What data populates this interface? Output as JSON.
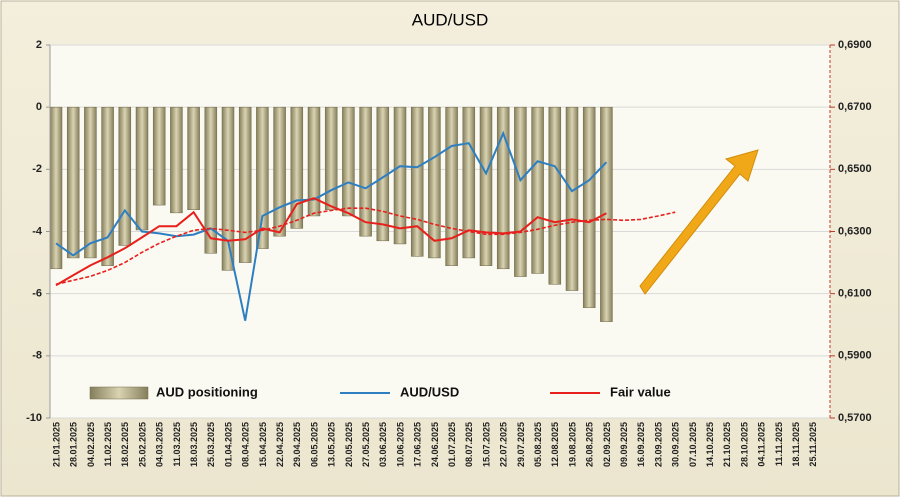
{
  "chart_data": {
    "type": "bar",
    "title": "AUD/USD",
    "categories": [
      "21.01.2025",
      "28.01.2025",
      "04.02.2025",
      "11.02.2025",
      "18.02.2025",
      "25.02.2025",
      "04.03.2025",
      "11.03.2025",
      "18.03.2025",
      "25.03.2025",
      "01.04.2025",
      "08.04.2025",
      "15.04.2025",
      "22.04.2025",
      "29.04.2025",
      "06.05.2025",
      "13.05.2025",
      "20.05.2025",
      "27.05.2025",
      "03.06.2025",
      "10.06.2025",
      "17.06.2025",
      "24.06.2025",
      "01.07.2025",
      "08.07.2025",
      "15.07.2025",
      "22.07.2025",
      "29.07.2025",
      "05.08.2025",
      "12.08.2025",
      "19.08.2025",
      "26.08.2025",
      "02.09.2025",
      "09.09.2025",
      "16.09.2025",
      "23.09.2025",
      "30.09.2025",
      "07.10.2025",
      "14.10.2025",
      "21.10.2025",
      "28.10.2025",
      "04.11.2025",
      "11.11.2025",
      "18.11.2025",
      "25.11.2025"
    ],
    "series": [
      {
        "name": "AUD positioning",
        "type": "bar",
        "color": "#b3ab82",
        "values": [
          -5.2,
          -4.85,
          -4.85,
          -5.1,
          -4.45,
          -3.95,
          -3.15,
          -3.4,
          -3.3,
          -4.7,
          -5.25,
          -5.0,
          -4.55,
          -4.15,
          -3.9,
          -3.5,
          -3.3,
          -3.5,
          -4.15,
          -4.3,
          -4.4,
          -4.8,
          -4.85,
          -5.1,
          -4.85,
          -5.1,
          -5.2,
          -5.45,
          -5.35,
          -5.7,
          -5.9,
          -6.45,
          -6.9,
          null,
          null,
          null,
          null,
          null,
          null,
          null,
          null,
          null,
          null,
          null,
          null
        ]
      },
      {
        "name": "AUD/USD",
        "type": "line",
        "axis": "y2",
        "color": "#2e7fc1",
        "values": [
          0.6262,
          0.6223,
          0.6262,
          0.6281,
          0.6368,
          0.63,
          0.6294,
          0.6285,
          0.629,
          0.631,
          0.627,
          0.6013,
          0.635,
          0.6378,
          0.64,
          0.6403,
          0.6433,
          0.6458,
          0.6439,
          0.6474,
          0.651,
          0.6507,
          0.6539,
          0.6575,
          0.6584,
          0.6487,
          0.6616,
          0.6465,
          0.6526,
          0.651,
          0.643,
          0.6465,
          0.6523,
          null,
          null,
          null,
          null,
          null,
          null,
          null,
          null,
          null,
          null,
          null,
          null
        ]
      },
      {
        "name": "Fair value",
        "type": "line",
        "axis": "y2",
        "color": "#e8201c",
        "values": [
          0.6127,
          0.6159,
          0.6191,
          0.6217,
          0.6246,
          0.6281,
          0.6317,
          0.6317,
          0.6362,
          0.6278,
          0.627,
          0.6275,
          0.631,
          0.6297,
          0.6388,
          0.6407,
          0.6381,
          0.6359,
          0.633,
          0.6323,
          0.631,
          0.6317,
          0.627,
          0.6278,
          0.6304,
          0.6297,
          0.6294,
          0.63,
          0.6346,
          0.633,
          0.6339,
          0.633,
          0.6359,
          null,
          null,
          null,
          null,
          null,
          null,
          null,
          null,
          null,
          null,
          null,
          null
        ]
      },
      {
        "type": "line",
        "axis": "y2",
        "color": "#e8201c",
        "dashed": true,
        "values": [
          0.613,
          0.6143,
          0.6156,
          0.6175,
          0.62,
          0.6233,
          0.6262,
          0.6285,
          0.6304,
          0.631,
          0.6304,
          0.6297,
          0.6304,
          0.6317,
          0.6336,
          0.6359,
          0.6368,
          0.6375,
          0.6375,
          0.6365,
          0.635,
          0.6339,
          0.6323,
          0.631,
          0.63,
          0.6291,
          0.6291,
          0.6297,
          0.6307,
          0.632,
          0.633,
          0.6336,
          0.6339,
          0.6336,
          0.6339,
          0.635,
          0.6362,
          null,
          null,
          null,
          null,
          null,
          null,
          null,
          null
        ]
      }
    ],
    "ylim": [
      -10,
      2
    ],
    "yticks": [
      -10,
      -8,
      -6,
      -4,
      -2,
      0,
      2
    ],
    "y2lim": [
      0.57,
      0.69
    ],
    "y2ticks": [
      {
        "value": 0.57,
        "label": "0,5700"
      },
      {
        "value": 0.59,
        "label": "0,5900"
      },
      {
        "value": 0.61,
        "label": "0,6100"
      },
      {
        "value": 0.63,
        "label": "0,6300"
      },
      {
        "value": 0.65,
        "label": "0,6500"
      },
      {
        "value": 0.67,
        "label": "0,6700"
      },
      {
        "value": 0.69,
        "label": "0,6900"
      }
    ],
    "grid": true,
    "legend": "bottom"
  }
}
